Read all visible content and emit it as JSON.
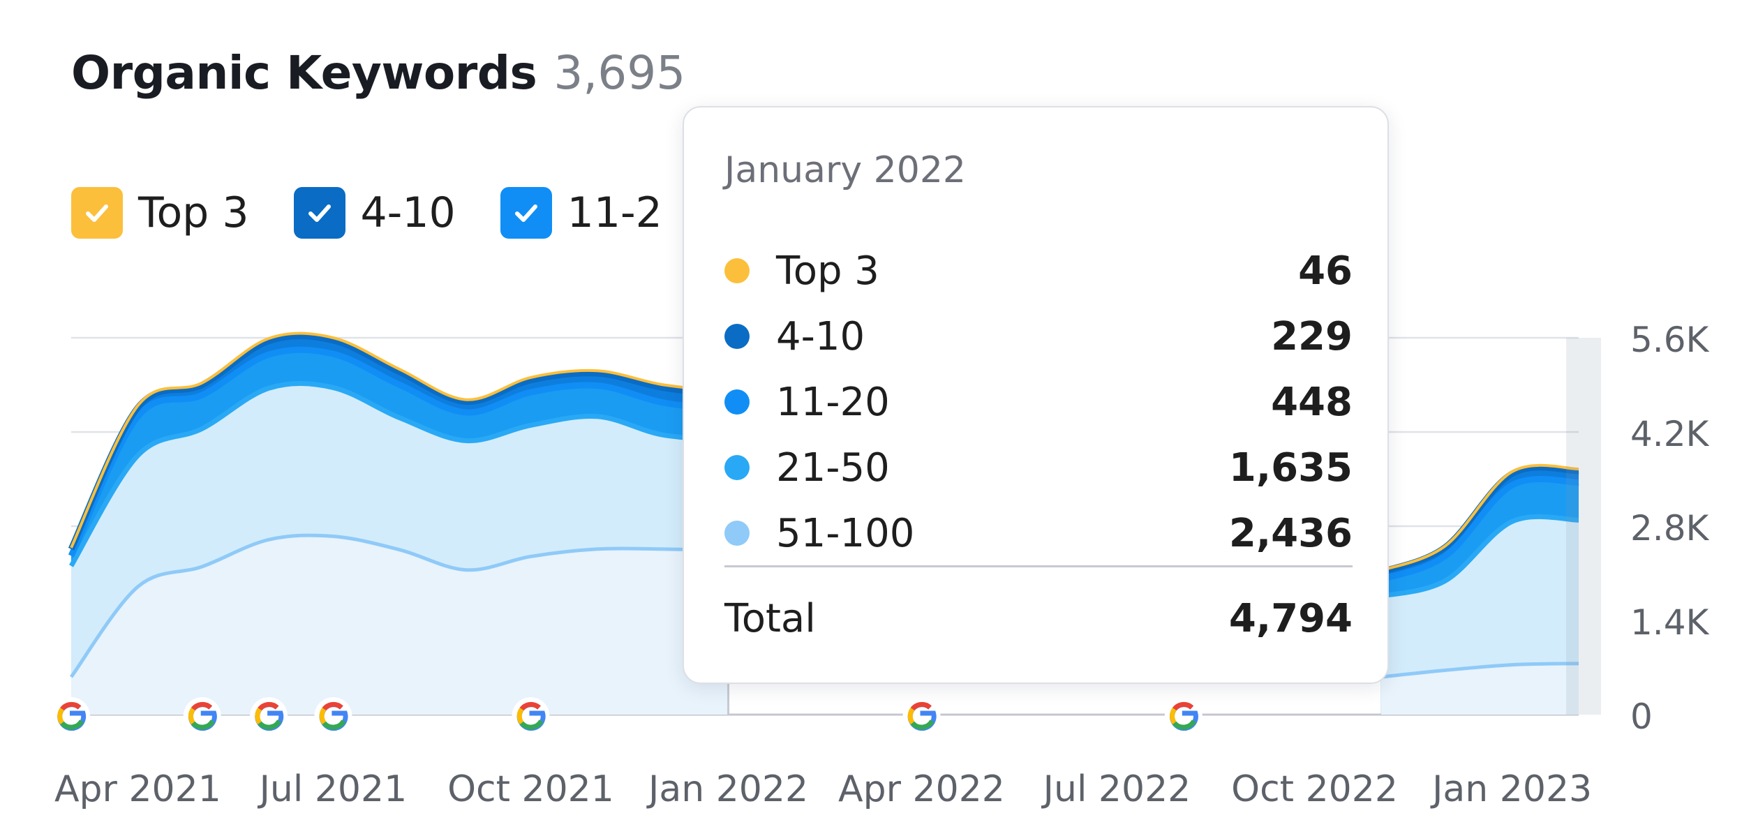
{
  "header": {
    "title": "Organic Keywords",
    "count": "3,695"
  },
  "legend": [
    {
      "label": "Top 3",
      "color": "#fcbf3c"
    },
    {
      "label": "4-10",
      "color": "#0a6cc4"
    },
    {
      "label": "11-2",
      "color": "#108ef5"
    }
  ],
  "tooltip": {
    "date": "January 2022",
    "rows": [
      {
        "label": "Top 3",
        "value": "46",
        "color": "#fcbf3c"
      },
      {
        "label": "4-10",
        "value": "229",
        "color": "#0a6cc4"
      },
      {
        "label": "11-20",
        "value": "448",
        "color": "#108ef5"
      },
      {
        "label": "21-50",
        "value": "1,635",
        "color": "#29a9f5"
      },
      {
        "label": "51-100",
        "value": "2,436",
        "color": "#8fcaf8"
      }
    ],
    "total_label": "Total",
    "total_value": "4,794"
  },
  "chart_data": {
    "type": "area",
    "stacked": true,
    "x": [
      "2021-03",
      "2021-04",
      "2021-05",
      "2021-06",
      "2021-07",
      "2021-08",
      "2021-09",
      "2021-10",
      "2021-11",
      "2021-12",
      "2022-01",
      "2022-11",
      "2022-12",
      "2023-01",
      "2023-02"
    ],
    "series": [
      {
        "name": "51-100",
        "color": "#8fcaf8",
        "values": [
          560,
          1900,
          2200,
          2600,
          2650,
          2450,
          2150,
          2350,
          2460,
          2460,
          2436,
          560,
          660,
          740,
          760
        ]
      },
      {
        "name": "21-50",
        "color": "#29a9f5",
        "values": [
          1650,
          1950,
          2050,
          2250,
          2210,
          1960,
          1920,
          1950,
          1970,
          1700,
          1635,
          1200,
          1330,
          2130,
          2130
        ]
      },
      {
        "name": "11-20",
        "color": "#108ef5",
        "values": [
          150,
          580,
          500,
          500,
          500,
          490,
          420,
          490,
          460,
          480,
          448,
          250,
          370,
          540,
          560
        ]
      },
      {
        "name": "4-10",
        "color": "#0a6cc4",
        "values": [
          100,
          130,
          150,
          200,
          200,
          190,
          160,
          180,
          180,
          220,
          229,
          110,
          130,
          170,
          170
        ]
      },
      {
        "name": "Top 3",
        "color": "#fcbf3c",
        "values": [
          20,
          30,
          30,
          40,
          40,
          40,
          30,
          40,
          40,
          45,
          46,
          20,
          20,
          30,
          30
        ]
      }
    ],
    "x_ticks": [
      "Apr 2021",
      "Jul 2021",
      "Oct 2021",
      "Jan 2022",
      "Apr 2022",
      "Jul 2022",
      "Oct 2022",
      "Jan 2023"
    ],
    "y_ticks": [
      "0",
      "1.4K",
      "2.8K",
      "4.2K",
      "5.6K"
    ],
    "ylim": [
      0,
      5600
    ],
    "y_axis_position": "right",
    "grid": true,
    "google_update_markers": [
      "2021-03",
      "2021-05",
      "2021-06",
      "2021-07",
      "2021-10",
      "2022-04",
      "2022-08"
    ],
    "hover_date": "2022-01"
  }
}
